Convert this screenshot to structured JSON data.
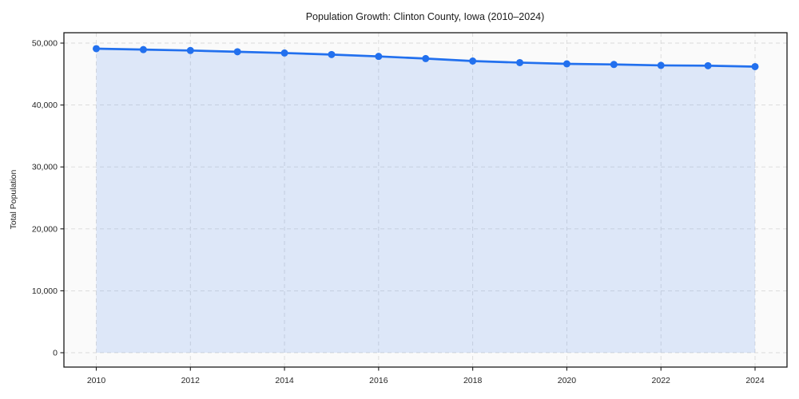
{
  "figure": {
    "background": "#ffffff",
    "plot_background": "#fafafa"
  },
  "chart_data": {
    "type": "area",
    "title": "Population Growth: Clinton County, Iowa (2010–2024)",
    "xlabel": "",
    "ylabel": "Total Population",
    "x": [
      2010,
      2011,
      2012,
      2013,
      2014,
      2015,
      2016,
      2017,
      2018,
      2019,
      2020,
      2021,
      2022,
      2023,
      2024
    ],
    "series": [
      {
        "name": "Total Population",
        "values": [
          49100,
          48950,
          48800,
          48600,
          48400,
          48150,
          47850,
          47500,
          47100,
          46850,
          46650,
          46550,
          46400,
          46350,
          46200
        ]
      }
    ],
    "xlim": [
      2010,
      2024
    ],
    "ylim": [
      0,
      50000
    ],
    "xticks": [
      2010,
      2012,
      2014,
      2016,
      2018,
      2020,
      2022,
      2024
    ],
    "xtick_labels": [
      "2010",
      "2012",
      "2014",
      "2016",
      "2018",
      "2020",
      "2022",
      "2024"
    ],
    "yticks": [
      0,
      10000,
      20000,
      30000,
      40000,
      50000
    ],
    "ytick_labels": [
      "0",
      "10,000",
      "20,000",
      "30,000",
      "40,000",
      "50,000"
    ],
    "grid": true,
    "grid_style": "dashed",
    "legend": false,
    "colors": {
      "line": "#2270ee",
      "marker": "#2270ee",
      "fill": "#2270ee",
      "fill_opacity": "0.13",
      "grid": "#d9d9d9",
      "axis": "#1a1a1a",
      "text": "#262626"
    }
  }
}
